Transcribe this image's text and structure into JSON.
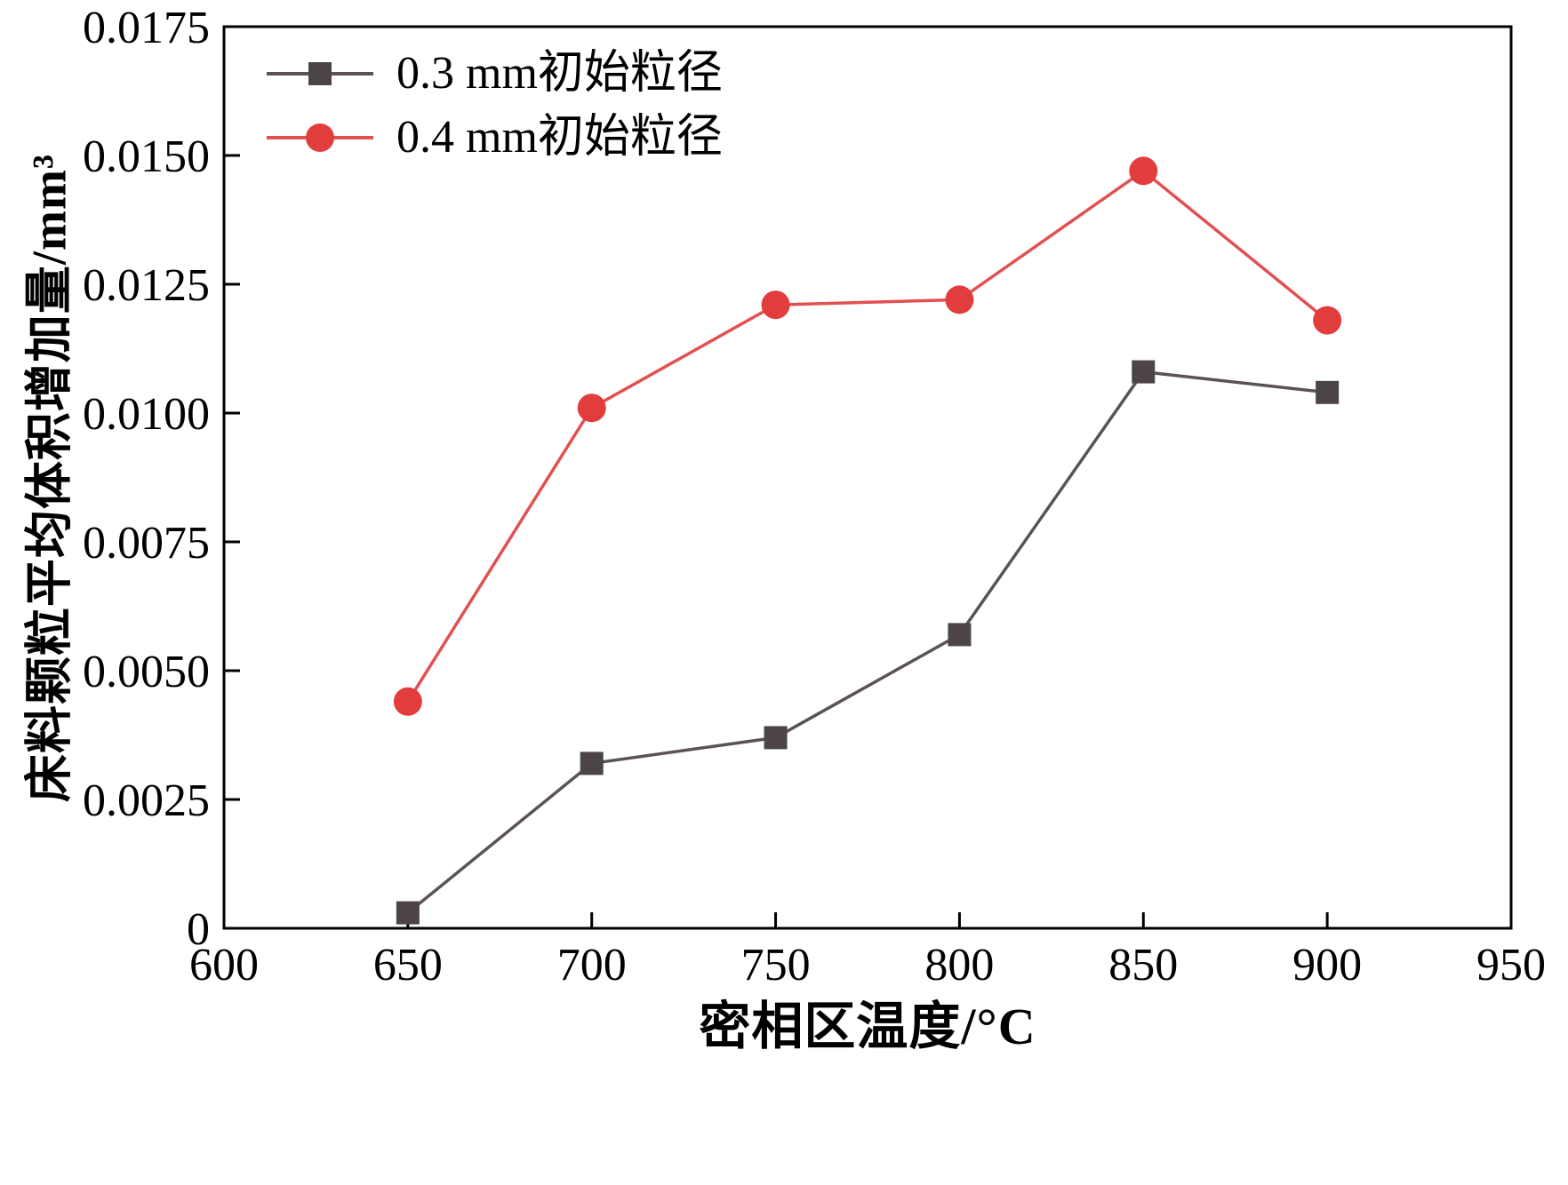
{
  "figure": {
    "background": "#ffffff"
  },
  "chart_data": {
    "type": "line",
    "title": "",
    "xlabel": "密相区温度/°C",
    "ylabel": "床料颗粒平均体积增加量/mm³",
    "xlim": [
      600,
      950
    ],
    "ylim": [
      0,
      0.0175
    ],
    "xticks": [
      600,
      650,
      700,
      750,
      800,
      850,
      900,
      950
    ],
    "yticks": [
      0,
      0.0025,
      0.005,
      0.0075,
      0.01,
      0.0125,
      0.015,
      0.0175
    ],
    "ytick_labels": [
      "0",
      "0.0025",
      "0.0050",
      "0.0075",
      "0.0100",
      "0.0125",
      "0.0150",
      "0.0175"
    ],
    "grid": false,
    "legend_position": "top-left",
    "x": [
      650,
      700,
      750,
      800,
      850,
      900
    ],
    "series": [
      {
        "name": "0.3 mm初始粒径",
        "marker": "square",
        "color": "#4d4545",
        "line_color": "#5b5353",
        "values": [
          0.0003,
          0.0032,
          0.0037,
          0.0057,
          0.0108,
          0.0104
        ]
      },
      {
        "name": "0.4 mm初始粒径",
        "marker": "circle",
        "color": "#e23d3d",
        "line_color": "#e25050",
        "values": [
          0.0044,
          0.0101,
          0.0121,
          0.0122,
          0.0147,
          0.0118
        ]
      }
    ]
  }
}
